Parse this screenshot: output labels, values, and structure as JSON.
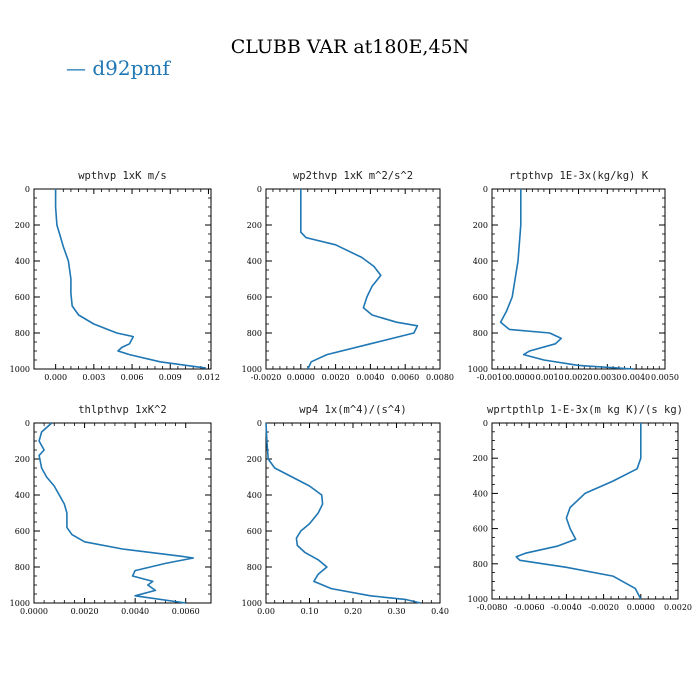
{
  "title": "CLUBB VAR at180E,45N",
  "legend": {
    "label": "— d92pmf",
    "color": "#1f77b4"
  },
  "chart_data": [
    {
      "type": "line",
      "title": "wpthvp  1xK m/s",
      "xlim": [
        -0.0017,
        0.0122
      ],
      "ylim": [
        1000,
        0
      ],
      "xticks": [
        0.0,
        0.003,
        0.006,
        0.009,
        0.012
      ],
      "xtick_labels": [
        "0.000",
        "0.003",
        "0.006",
        "0.009",
        "0.012"
      ],
      "yticks": [
        0,
        200,
        400,
        600,
        800,
        1000
      ],
      "series": [
        {
          "color": "#1f77b4",
          "x": [
            0.0,
            0.0,
            0.0001,
            0.0004,
            0.0006,
            0.001,
            0.0012,
            0.0012,
            0.0013,
            0.0018,
            0.003,
            0.0048,
            0.0061,
            0.0058,
            0.0052,
            0.0049,
            0.0058,
            0.0082,
            0.0118
          ],
          "y": [
            0,
            100,
            200,
            270,
            320,
            400,
            500,
            580,
            650,
            700,
            750,
            800,
            820,
            860,
            880,
            900,
            920,
            960,
            995
          ]
        }
      ]
    },
    {
      "type": "line",
      "title": "wp2thvp  1xK m^2/s^2",
      "xlim": [
        -0.002,
        0.008
      ],
      "ylim": [
        1000,
        0
      ],
      "xticks": [
        -0.002,
        0.0,
        0.002,
        0.004,
        0.006,
        0.008
      ],
      "xtick_labels": [
        "-0.0020",
        "0.0000",
        "0.0020",
        "0.0040",
        "0.0060",
        "0.0080"
      ],
      "yticks": [
        0,
        200,
        400,
        600,
        800,
        1000
      ],
      "series": [
        {
          "color": "#1f77b4",
          "x": [
            0.0,
            0.0,
            0.0,
            0.0003,
            0.002,
            0.0035,
            0.0042,
            0.0046,
            0.0041,
            0.0038,
            0.0036,
            0.0041,
            0.0055,
            0.0067,
            0.0065,
            0.004,
            0.0015,
            0.0006,
            0.0004
          ],
          "y": [
            0,
            100,
            240,
            270,
            310,
            380,
            430,
            480,
            540,
            600,
            660,
            700,
            740,
            760,
            800,
            860,
            920,
            960,
            1000
          ]
        }
      ]
    },
    {
      "type": "line",
      "title": "rtpthvp  1E-3x(kg/kg) K",
      "xlim": [
        -0.001,
        0.005
      ],
      "ylim": [
        1000,
        0
      ],
      "xticks": [
        -0.001,
        0.0,
        0.001,
        0.002,
        0.003,
        0.004,
        0.005
      ],
      "xtick_labels": [
        "-0.0010",
        "0.0000",
        "0.0010",
        "0.0020",
        "0.0030",
        "0.0040",
        "0.0050"
      ],
      "yticks": [
        0,
        200,
        400,
        600,
        800,
        1000
      ],
      "series": [
        {
          "color": "#1f77b4",
          "x": [
            0.0,
            0.0,
            -0.0001,
            -0.0002,
            -0.0003,
            -0.0004,
            -0.0005,
            -0.0007,
            -0.0004,
            0.001,
            0.0014,
            0.0012,
            0.0003,
            0.0001,
            0.0008,
            0.002,
            0.0039
          ],
          "y": [
            0,
            200,
            400,
            500,
            600,
            640,
            680,
            740,
            780,
            800,
            830,
            860,
            900,
            920,
            950,
            980,
            1000
          ]
        }
      ]
    },
    {
      "type": "line",
      "title": "thlpthvp  1xK^2",
      "xlim": [
        0.0,
        0.007
      ],
      "ylim": [
        1000,
        0
      ],
      "xticks": [
        0.0,
        0.002,
        0.004,
        0.006
      ],
      "xtick_labels": [
        "0.0000",
        "0.0020",
        "0.0040",
        "0.0060"
      ],
      "yticks": [
        0,
        200,
        400,
        600,
        800,
        1000
      ],
      "series": [
        {
          "color": "#1f77b4",
          "x": [
            0.0007,
            0.0003,
            0.0002,
            0.0004,
            0.0002,
            0.0003,
            0.0005,
            0.0008,
            0.001,
            0.0012,
            0.0013,
            0.0013,
            0.0015,
            0.002,
            0.0035,
            0.0058,
            0.0063,
            0.0052,
            0.004,
            0.0039,
            0.0047,
            0.0045,
            0.0048,
            0.004,
            0.006
          ],
          "y": [
            0,
            50,
            100,
            150,
            180,
            250,
            300,
            350,
            400,
            450,
            500,
            580,
            620,
            660,
            700,
            740,
            750,
            780,
            820,
            850,
            880,
            900,
            930,
            960,
            1000
          ]
        }
      ]
    },
    {
      "type": "line",
      "title": "wp4  1x(m^4)/(s^4)",
      "xlim": [
        0.0,
        0.4
      ],
      "ylim": [
        1000,
        0
      ],
      "xticks": [
        0.0,
        0.1,
        0.2,
        0.3,
        0.4
      ],
      "xtick_labels": [
        "0.00",
        "0.10",
        "0.20",
        "0.30",
        "0.40"
      ],
      "yticks": [
        0,
        200,
        400,
        600,
        800,
        1000
      ],
      "series": [
        {
          "color": "#1f77b4",
          "x": [
            0.0,
            0.002,
            0.005,
            0.02,
            0.06,
            0.1,
            0.128,
            0.13,
            0.12,
            0.1,
            0.08,
            0.07,
            0.072,
            0.09,
            0.12,
            0.14,
            0.12,
            0.11,
            0.15,
            0.24,
            0.32,
            0.355
          ],
          "y": [
            0,
            100,
            200,
            250,
            300,
            350,
            400,
            450,
            500,
            560,
            600,
            640,
            680,
            720,
            760,
            800,
            840,
            880,
            920,
            960,
            980,
            1000
          ]
        }
      ]
    },
    {
      "type": "line",
      "title": "wprtpthlp  1-E-3x(m kg K)/(s kg)",
      "xlim": [
        -0.008,
        0.002
      ],
      "ylim": [
        1000,
        0
      ],
      "xticks": [
        -0.008,
        -0.006,
        -0.004,
        -0.002,
        0.0,
        0.002
      ],
      "xtick_labels": [
        "-0.0080",
        "-0.0060",
        "-0.0040",
        "-0.0020",
        "0.0000",
        "0.0020"
      ],
      "yticks": [
        0,
        200,
        400,
        600,
        800,
        1000
      ],
      "series": [
        {
          "color": "#1f77b4",
          "x": [
            0.0,
            0.0,
            -0.0002,
            -0.0015,
            -0.003,
            -0.0038,
            -0.004,
            -0.0038,
            -0.0035,
            -0.0045,
            -0.0062,
            -0.0067,
            -0.0065,
            -0.004,
            -0.0015,
            -0.0003,
            0.0
          ],
          "y": [
            0,
            200,
            260,
            330,
            400,
            480,
            540,
            600,
            660,
            700,
            740,
            760,
            780,
            820,
            870,
            940,
            1000
          ]
        }
      ]
    }
  ]
}
